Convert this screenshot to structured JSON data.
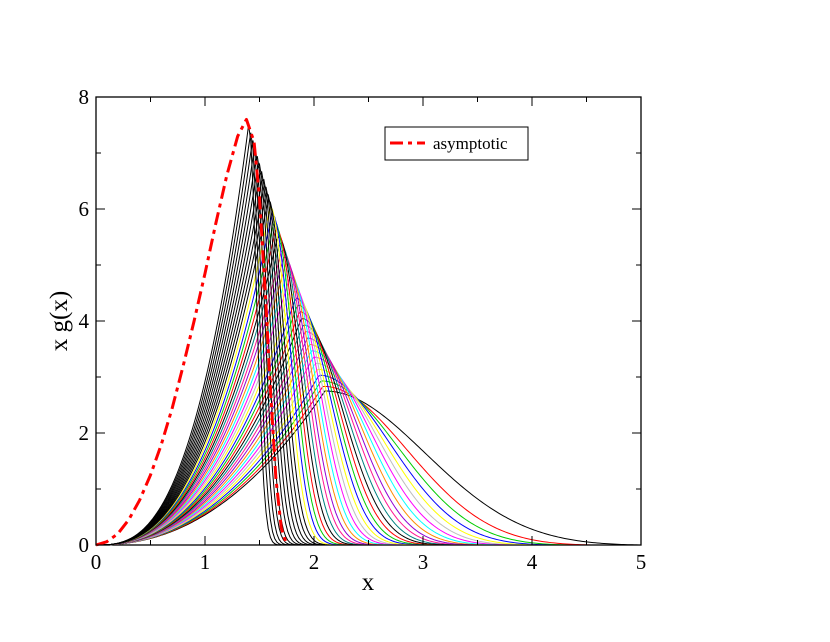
{
  "chart_data": {
    "type": "line",
    "title": "",
    "xlabel": "x",
    "ylabel": "x g(x)",
    "xlim": [
      0,
      5
    ],
    "ylim": [
      0,
      8
    ],
    "x_ticks": [
      "0",
      "1",
      "2",
      "3",
      "4",
      "5"
    ],
    "y_ticks": [
      "0",
      "2",
      "4",
      "6",
      "8"
    ],
    "grid": false,
    "legend": {
      "placement": "top-right",
      "entries": [
        "asymptotic"
      ]
    },
    "asymptotic": {
      "name": "asymptotic",
      "color": "#ff0000",
      "style": "dashed",
      "x": [
        0,
        0.1,
        0.2,
        0.3,
        0.4,
        0.5,
        0.6,
        0.7,
        0.8,
        0.9,
        1.0,
        1.1,
        1.2,
        1.3,
        1.38,
        1.45,
        1.5,
        1.55,
        1.6,
        1.65,
        1.7,
        1.75
      ],
      "y": [
        0,
        0.06,
        0.2,
        0.45,
        0.8,
        1.25,
        1.8,
        2.45,
        3.2,
        4.0,
        4.85,
        5.75,
        6.6,
        7.3,
        7.6,
        7.2,
        6.2,
        4.6,
        2.8,
        1.2,
        0.3,
        0
      ]
    },
    "curve_family": {
      "count": 40,
      "colors": [
        "#000000",
        "#ff0000",
        "#00cc00",
        "#0000ff",
        "#ffff00",
        "#bebebe",
        "#ff00ff",
        "#00ffff",
        "#ff8c00",
        "#9400d3",
        "#ff1493",
        "#008080"
      ],
      "note": ""
    },
    "series": [
      {
        "name": "",
        "color": "#000000",
        "x": [
          0,
          0.5,
          1.0,
          1.5,
          2.0,
          2.1,
          2.5,
          3.0,
          3.5,
          4.0,
          4.5,
          5.0
        ],
        "y": [
          0,
          0.45,
          1.5,
          2.35,
          2.72,
          2.74,
          2.6,
          1.95,
          1.0,
          0.35,
          0.08,
          0
        ]
      },
      {
        "name": "",
        "color": "#000000",
        "x": [
          0,
          0.5,
          1.0,
          1.45,
          1.6,
          1.7,
          1.8,
          1.9,
          2.0,
          2.2
        ],
        "y": [
          0,
          1.3,
          4.8,
          7.45,
          6.0,
          3.5,
          1.2,
          0.3,
          0.05,
          0
        ]
      }
    ]
  }
}
